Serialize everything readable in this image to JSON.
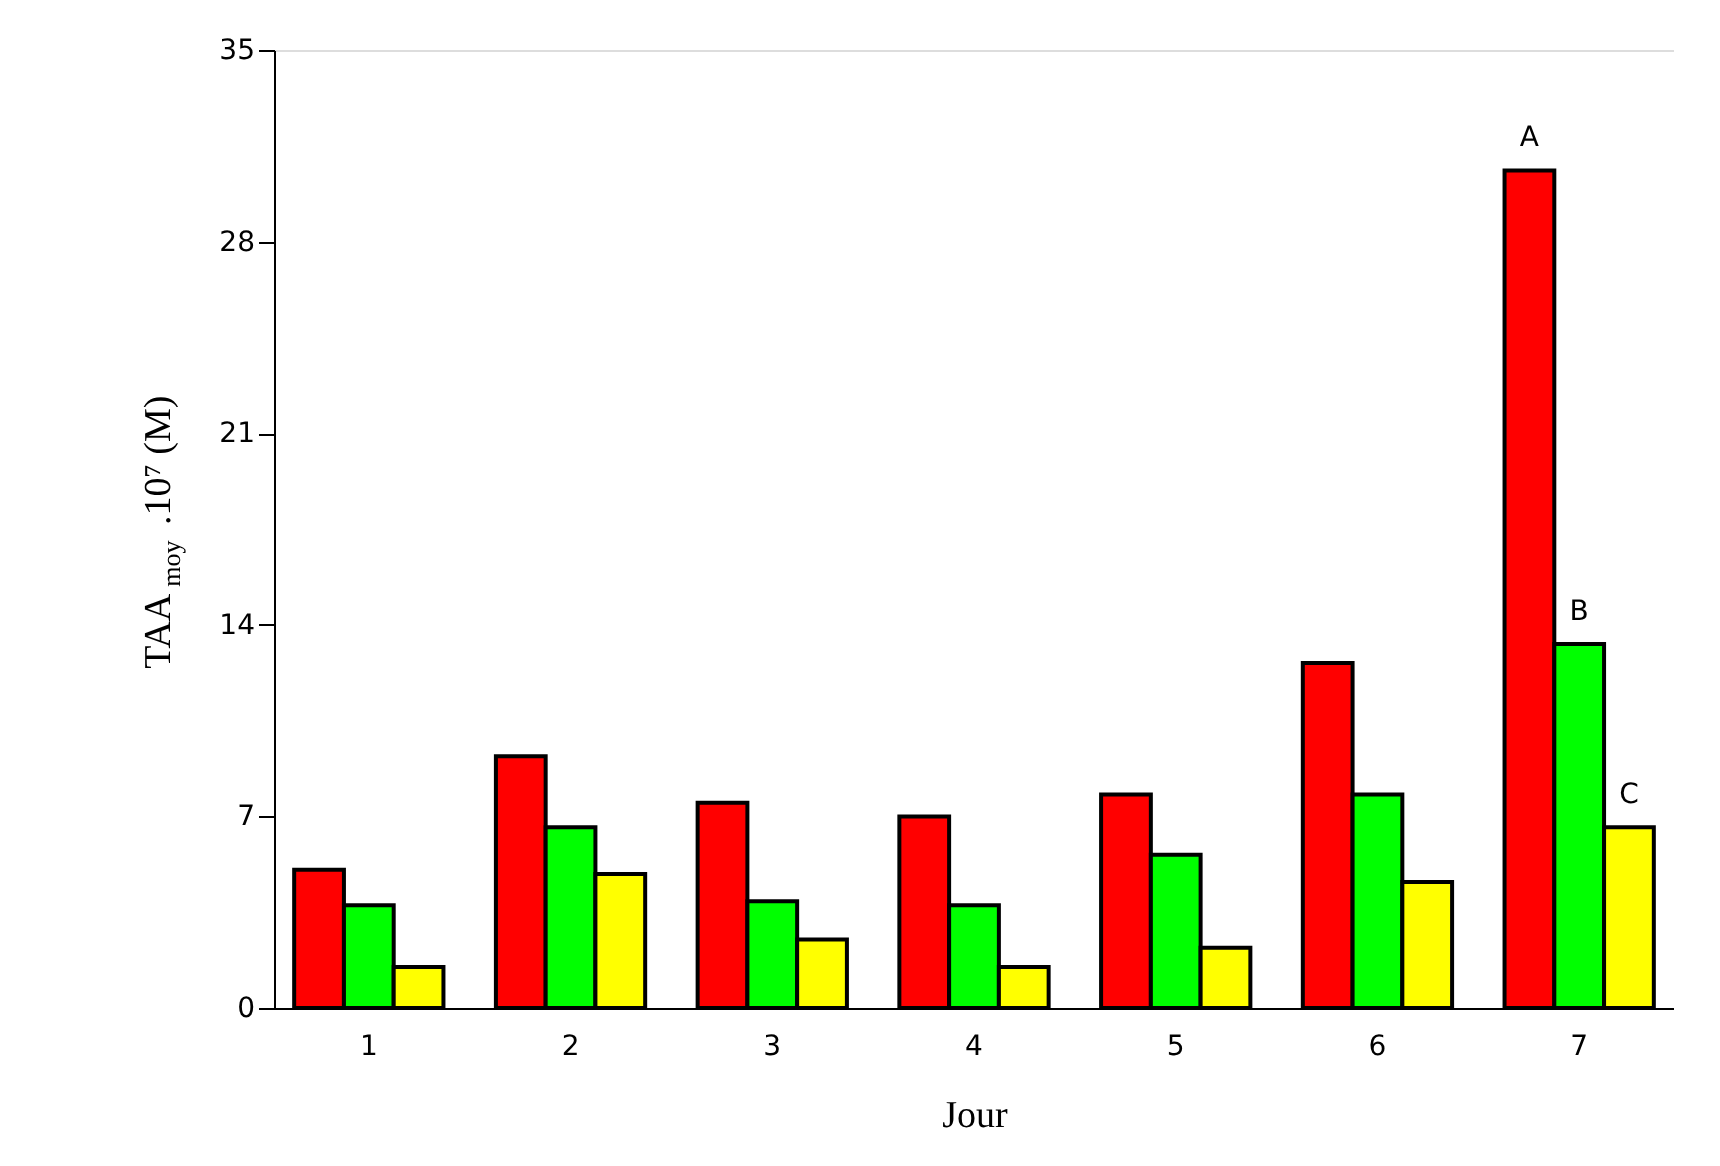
{
  "chart_data": {
    "type": "bar",
    "xlabel": "Jour",
    "ylabel": "TAA$_{moy}$.10⁷ (M)",
    "categories": [
      "1",
      "2",
      "3",
      "4",
      "5",
      "6",
      "7"
    ],
    "series": [
      {
        "color": "#ff0000",
        "values": [
          5.05,
          9.2,
          7.5,
          7.0,
          7.8,
          12.6,
          30.6
        ]
      },
      {
        "color": "#00ff00",
        "values": [
          3.75,
          6.6,
          3.9,
          3.75,
          5.6,
          7.8,
          13.3
        ]
      },
      {
        "color": "#ffff00",
        "values": [
          1.5,
          4.9,
          2.5,
          1.5,
          2.2,
          4.6,
          6.6
        ]
      }
    ],
    "ylim": [
      0,
      35
    ],
    "yticks": [
      0,
      7,
      14,
      21,
      28,
      35
    ],
    "grid": false,
    "legend": false,
    "annotations": [
      "A",
      "B",
      "C"
    ]
  }
}
